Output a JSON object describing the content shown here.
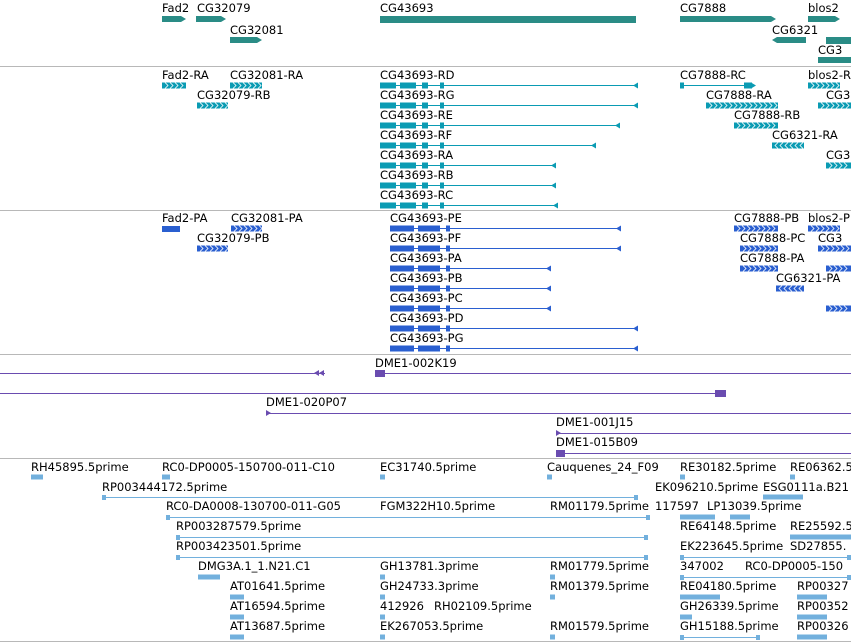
{
  "colors": {
    "gene": "#2a8c86",
    "transcript_cyan": "#0a9bb3",
    "transcript_blue": "#2a5fd0",
    "clone": "#6a4cb0",
    "est": "#72b0dd",
    "divider": "#b8b8b8",
    "line_cyan": "#0a9bb3",
    "line_blue": "#2a5fd0",
    "line_purple": "#6a4cb0",
    "line_est": "#72b0dd"
  },
  "tracks": {
    "genes": {
      "labels": [
        "Fad2",
        "CG32079",
        "CG32081",
        "CG43693",
        "CG7888",
        "blos2",
        "CG6321"
      ]
    },
    "transcripts_a": {
      "labels": [
        "Fad2-RA",
        "CG32081-RA",
        "CG32079-RB",
        "CG43693-RD",
        "CG43693-RG",
        "CG43693-RE",
        "CG43693-RF",
        "CG43693-RA",
        "CG43693-RB",
        "CG43693-RC",
        "CG7888-RC",
        "blos2-R",
        "CG7888-RA",
        "CG7888-RB",
        "CG6321-RA",
        "CG3"
      ]
    },
    "transcripts_b": {
      "labels": [
        "Fad2-PA",
        "CG32081-PA",
        "CG32079-PB",
        "CG43693-PE",
        "CG43693-PF",
        "CG43693-PA",
        "CG43693-PB",
        "CG43693-PC",
        "CG43693-PD",
        "CG43693-PG",
        "CG7888-PB",
        "blos2-P",
        "CG7888-PC",
        "CG3",
        "CG7888-PA",
        "CG6321-PA"
      ]
    },
    "clones": {
      "labels": [
        "DME1-002K19",
        "DME1-020P07",
        "DME1-001J15",
        "DME1-015B09"
      ]
    },
    "ests": {
      "labels": [
        "RH45895.5prime",
        "RC0-DP0005-150700-011-C10",
        "EC31740.5prime",
        "Cauquenes_24_F09",
        "RE30182.5prime",
        "RE06362.5",
        "RP003444172.5prime",
        "EK096210.5prime",
        "ESG0111a.B21",
        "RC0-DA0008-130700-011-G05",
        "FGM322H10.5prime",
        "RM01179.5prime",
        "117597",
        "LP13039.5prime",
        "RP003287579.5prime",
        "RE64148.5prime",
        "RE25592.5",
        "RP003423501.5prime",
        "EK223645.5prime",
        "SD27855.",
        "DMG3A.1_1.N21.C1",
        "GH13781.3prime",
        "RM01779.5prime",
        "347002",
        "RC0-DP0005-150",
        "AT01641.5prime",
        "GH24733.3prime",
        "RM01379.5prime",
        "RE04180.5prime",
        "RP00327",
        "AT16594.5prime",
        "412926",
        "RH02109.5prime",
        "GH26339.5prime",
        "RP00352",
        "AT13687.5prime",
        "EK267053.5prime",
        "RM01579.5prime",
        "GH15188.5prime",
        "RP00326"
      ]
    }
  }
}
